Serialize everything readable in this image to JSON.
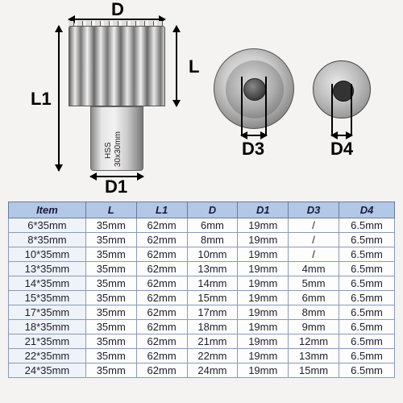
{
  "diagram": {
    "labels": {
      "D": "D",
      "L": "L",
      "L1": "L1",
      "D1": "D1",
      "D3": "D3",
      "D4": "D4"
    },
    "shank_marking_line1": "HSS",
    "shank_marking_line2": "30x30mm",
    "colors": {
      "background": "#f4f3f1",
      "label": "#000000",
      "metal_light": "#e8e8e8",
      "metal_dark": "#6a6a6a"
    },
    "label_fontsize_pt": 16
  },
  "table": {
    "header_bg": "#b3c8e6",
    "header_fg": "#1a1a3a",
    "border_color": "#8a9ab8",
    "columns": [
      "Item",
      "L",
      "L1",
      "D",
      "D1",
      "D3",
      "D4"
    ],
    "rows": [
      [
        "6*35mm",
        "35mm",
        "62mm",
        "6mm",
        "19mm",
        "/",
        "6.5mm"
      ],
      [
        "8*35mm",
        "35mm",
        "62mm",
        "8mm",
        "19mm",
        "/",
        "6.5mm"
      ],
      [
        "10*35mm",
        "35mm",
        "62mm",
        "10mm",
        "19mm",
        "/",
        "6.5mm"
      ],
      [
        "13*35mm",
        "35mm",
        "62mm",
        "13mm",
        "19mm",
        "4mm",
        "6.5mm"
      ],
      [
        "14*35mm",
        "35mm",
        "62mm",
        "14mm",
        "19mm",
        "5mm",
        "6.5mm"
      ],
      [
        "15*35mm",
        "35mm",
        "62mm",
        "15mm",
        "19mm",
        "6mm",
        "6.5mm"
      ],
      [
        "17*35mm",
        "35mm",
        "62mm",
        "17mm",
        "19mm",
        "8mm",
        "6.5mm"
      ],
      [
        "18*35mm",
        "35mm",
        "62mm",
        "18mm",
        "19mm",
        "9mm",
        "6.5mm"
      ],
      [
        "21*35mm",
        "35mm",
        "62mm",
        "21mm",
        "19mm",
        "12mm",
        "6.5mm"
      ],
      [
        "22*35mm",
        "35mm",
        "62mm",
        "22mm",
        "19mm",
        "13mm",
        "6.5mm"
      ],
      [
        "24*35mm",
        "35mm",
        "62mm",
        "24mm",
        "19mm",
        "15mm",
        "6.5mm"
      ]
    ]
  }
}
